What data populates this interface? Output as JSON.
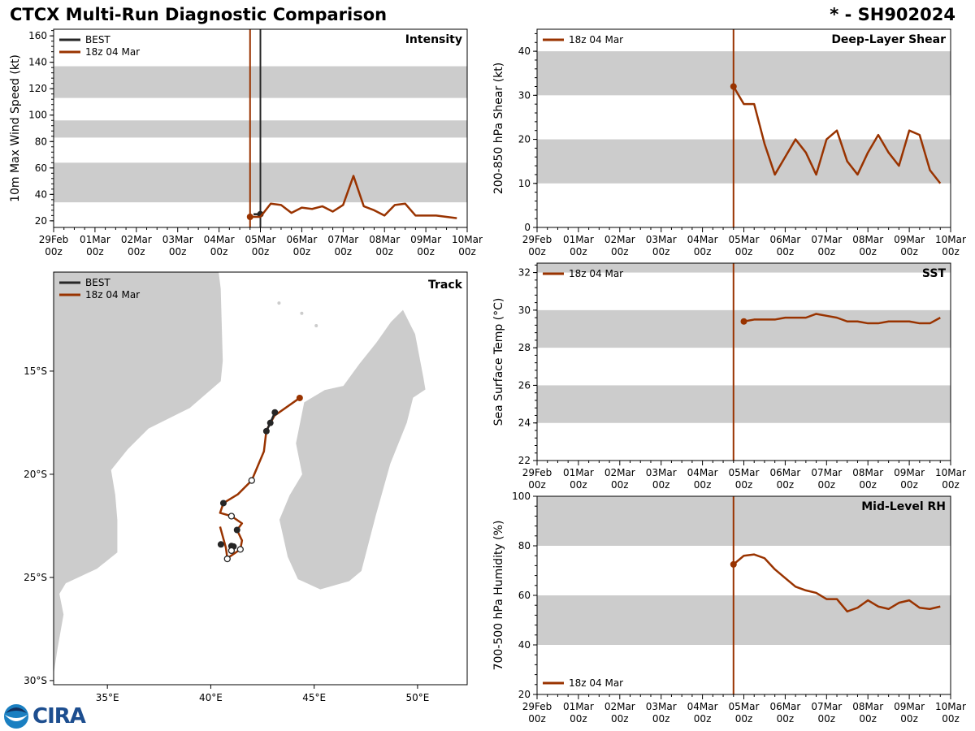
{
  "header": {
    "title": "CTCX Multi-Run Diagnostic Comparison",
    "storm": "* - SH902024"
  },
  "logo": {
    "noaa": "NOAA",
    "cira": "CIRA"
  },
  "colors": {
    "forecast": "#993300",
    "best": "#262626",
    "band": "#cccccc"
  },
  "time_axis": {
    "range": [
      "2024-02-29T00",
      "2024-03-10T00"
    ],
    "tick_labels": [
      [
        "29Feb",
        "00z"
      ],
      [
        "01Mar",
        "00z"
      ],
      [
        "02Mar",
        "00z"
      ],
      [
        "03Mar",
        "00z"
      ],
      [
        "04Mar",
        "00z"
      ],
      [
        "05Mar",
        "00z"
      ],
      [
        "06Mar",
        "00z"
      ],
      [
        "07Mar",
        "00z"
      ],
      [
        "08Mar",
        "00z"
      ],
      [
        "09Mar",
        "00z"
      ],
      [
        "10Mar",
        "00z"
      ]
    ]
  },
  "chart_data": [
    {
      "id": "intensity",
      "type": "line",
      "title": "Intensity",
      "ylabel": "10m Max Wind Speed (kt)",
      "ylim": [
        15,
        165
      ],
      "yticks": [
        20,
        40,
        60,
        80,
        100,
        120,
        140,
        160
      ],
      "bands": [
        [
          34,
          64
        ],
        [
          83,
          96
        ],
        [
          113,
          137
        ]
      ],
      "legend": {
        "position": "top-left",
        "entries": [
          "BEST",
          "18z 04 Mar"
        ]
      },
      "vlines": [
        {
          "t": "2024-03-04T18",
          "series": "18z 04 Mar"
        },
        {
          "t": "2024-03-05T00",
          "series": "BEST"
        }
      ],
      "series": [
        {
          "name": "BEST",
          "points": [
            [
              "2024-03-04T20",
              25
            ],
            [
              "2024-03-05T00",
              25
            ]
          ]
        },
        {
          "name": "18z 04 Mar",
          "points": [
            [
              "2024-03-04T18",
              23
            ],
            [
              "2024-03-05T00",
              23
            ],
            [
              "2024-03-05T06",
              33
            ],
            [
              "2024-03-05T12",
              32
            ],
            [
              "2024-03-05T18",
              26
            ],
            [
              "2024-03-06T00",
              30
            ],
            [
              "2024-03-06T06",
              29
            ],
            [
              "2024-03-06T12",
              31
            ],
            [
              "2024-03-06T18",
              27
            ],
            [
              "2024-03-07T00",
              32
            ],
            [
              "2024-03-07T06",
              54
            ],
            [
              "2024-03-07T12",
              31
            ],
            [
              "2024-03-07T18",
              28
            ],
            [
              "2024-03-08T00",
              24
            ],
            [
              "2024-03-08T06",
              32
            ],
            [
              "2024-03-08T12",
              33
            ],
            [
              "2024-03-08T18",
              24
            ],
            [
              "2024-03-09T00",
              24
            ],
            [
              "2024-03-09T06",
              24
            ],
            [
              "2024-03-09T12",
              23
            ],
            [
              "2024-03-09T18",
              22
            ]
          ]
        }
      ]
    },
    {
      "id": "shear",
      "type": "line",
      "title": "Deep-Layer Shear",
      "ylabel": "200-850 hPa Shear (kt)",
      "ylim": [
        0,
        45
      ],
      "yticks": [
        0,
        10,
        20,
        30,
        40
      ],
      "bands": [
        [
          10,
          20
        ],
        [
          30,
          40
        ]
      ],
      "legend": {
        "position": "top-left",
        "entries": [
          "18z 04 Mar"
        ]
      },
      "vlines": [
        {
          "t": "2024-03-04T18",
          "series": "18z 04 Mar"
        }
      ],
      "series": [
        {
          "name": "18z 04 Mar",
          "points": [
            [
              "2024-03-04T18",
              32
            ],
            [
              "2024-03-05T00",
              28
            ],
            [
              "2024-03-05T06",
              28
            ],
            [
              "2024-03-05T12",
              19
            ],
            [
              "2024-03-05T18",
              12
            ],
            [
              "2024-03-06T00",
              16
            ],
            [
              "2024-03-06T06",
              20
            ],
            [
              "2024-03-06T12",
              17
            ],
            [
              "2024-03-06T18",
              12
            ],
            [
              "2024-03-07T00",
              20
            ],
            [
              "2024-03-07T06",
              22
            ],
            [
              "2024-03-07T12",
              15
            ],
            [
              "2024-03-07T18",
              12
            ],
            [
              "2024-03-08T00",
              17
            ],
            [
              "2024-03-08T06",
              21
            ],
            [
              "2024-03-08T12",
              17
            ],
            [
              "2024-03-08T18",
              14
            ],
            [
              "2024-03-09T00",
              22
            ],
            [
              "2024-03-09T06",
              21
            ],
            [
              "2024-03-09T12",
              13
            ],
            [
              "2024-03-09T18",
              10
            ]
          ]
        }
      ]
    },
    {
      "id": "sst",
      "type": "line",
      "title": "SST",
      "ylabel": "Sea Surface Temp (°C)",
      "ylim": [
        22,
        32.5
      ],
      "yticks": [
        22,
        24,
        26,
        28,
        30,
        32
      ],
      "bands": [
        [
          24,
          26
        ],
        [
          28,
          30
        ],
        [
          32,
          33
        ]
      ],
      "legend": {
        "position": "top-left",
        "entries": [
          "18z 04 Mar"
        ]
      },
      "vlines": [
        {
          "t": "2024-03-04T18",
          "series": "18z 04 Mar"
        }
      ],
      "series": [
        {
          "name": "18z 04 Mar",
          "points": [
            [
              "2024-03-05T00",
              29.4
            ],
            [
              "2024-03-05T06",
              29.5
            ],
            [
              "2024-03-05T12",
              29.5
            ],
            [
              "2024-03-05T18",
              29.5
            ],
            [
              "2024-03-06T00",
              29.6
            ],
            [
              "2024-03-06T06",
              29.6
            ],
            [
              "2024-03-06T12",
              29.6
            ],
            [
              "2024-03-06T18",
              29.8
            ],
            [
              "2024-03-07T00",
              29.7
            ],
            [
              "2024-03-07T06",
              29.6
            ],
            [
              "2024-03-07T12",
              29.4
            ],
            [
              "2024-03-07T18",
              29.4
            ],
            [
              "2024-03-08T00",
              29.3
            ],
            [
              "2024-03-08T06",
              29.3
            ],
            [
              "2024-03-08T12",
              29.4
            ],
            [
              "2024-03-08T18",
              29.4
            ],
            [
              "2024-03-09T00",
              29.4
            ],
            [
              "2024-03-09T06",
              29.3
            ],
            [
              "2024-03-09T12",
              29.3
            ],
            [
              "2024-03-09T18",
              29.6
            ]
          ]
        }
      ]
    },
    {
      "id": "rh",
      "type": "line",
      "title": "Mid-Level RH",
      "ylabel": "700-500 hPa Humidity (%)",
      "ylim": [
        20,
        100
      ],
      "yticks": [
        20,
        40,
        60,
        80,
        100
      ],
      "bands": [
        [
          40,
          60
        ],
        [
          80,
          100
        ]
      ],
      "legend": {
        "position": "bottom-left",
        "entries": [
          "18z 04 Mar"
        ]
      },
      "vlines": [
        {
          "t": "2024-03-04T18",
          "series": "18z 04 Mar"
        }
      ],
      "series": [
        {
          "name": "18z 04 Mar",
          "points": [
            [
              "2024-03-04T18",
              72.5
            ],
            [
              "2024-03-05T00",
              76
            ],
            [
              "2024-03-05T06",
              76.5
            ],
            [
              "2024-03-05T12",
              75
            ],
            [
              "2024-03-05T18",
              70.5
            ],
            [
              "2024-03-06T00",
              67
            ],
            [
              "2024-03-06T06",
              63.5
            ],
            [
              "2024-03-06T12",
              62
            ],
            [
              "2024-03-06T18",
              61
            ],
            [
              "2024-03-07T00",
              58.5
            ],
            [
              "2024-03-07T06",
              58.5
            ],
            [
              "2024-03-07T12",
              53.5
            ],
            [
              "2024-03-07T18",
              55
            ],
            [
              "2024-03-08T00",
              58
            ],
            [
              "2024-03-08T06",
              55.5
            ],
            [
              "2024-03-08T12",
              54.5
            ],
            [
              "2024-03-08T18",
              57
            ],
            [
              "2024-03-09T00",
              58
            ],
            [
              "2024-03-09T06",
              55
            ],
            [
              "2024-03-09T12",
              54.5
            ],
            [
              "2024-03-09T18",
              55.5
            ]
          ]
        }
      ]
    },
    {
      "id": "track",
      "type": "scatter",
      "title": "Track",
      "lon_range": [
        32.4,
        52.4
      ],
      "lat_range": [
        -30.2,
        -10.2
      ],
      "xticks": [
        {
          "v": 35,
          "label": "35°E"
        },
        {
          "v": 40,
          "label": "40°E"
        },
        {
          "v": 45,
          "label": "45°E"
        },
        {
          "v": 50,
          "label": "50°E"
        }
      ],
      "yticks": [
        {
          "v": -15,
          "label": "15°S"
        },
        {
          "v": -20,
          "label": "20°S"
        },
        {
          "v": -25,
          "label": "25°S"
        },
        {
          "v": -30,
          "label": "30°S"
        }
      ],
      "legend": {
        "position": "top-left",
        "entries": [
          "BEST",
          "18z 04 Mar"
        ]
      },
      "forecast_track": [
        [
          44.3,
          -16.3
        ],
        [
          43.08,
          -17.16
        ],
        [
          42.69,
          -17.87
        ],
        [
          42.57,
          -18.89
        ],
        [
          41.98,
          -20.3
        ],
        [
          41.31,
          -20.97
        ],
        [
          40.61,
          -21.4
        ],
        [
          40.45,
          -21.87
        ],
        [
          41.0,
          -22.03
        ],
        [
          41.51,
          -22.38
        ],
        [
          41.27,
          -22.7
        ],
        [
          41.51,
          -23.21
        ],
        [
          41.43,
          -23.64
        ],
        [
          40.8,
          -24.07
        ],
        [
          40.73,
          -23.56
        ],
        [
          40.45,
          -22.54
        ]
      ],
      "best_track": [
        [
          43.1,
          -17.0
        ],
        [
          42.88,
          -17.51
        ],
        [
          42.69,
          -17.91
        ]
      ],
      "best_points_filled": [
        [
          43.1,
          -17.0
        ],
        [
          42.88,
          -17.51
        ],
        [
          42.69,
          -17.91
        ],
        [
          40.61,
          -21.4
        ],
        [
          41.27,
          -22.7
        ],
        [
          40.49,
          -23.4
        ],
        [
          41.0,
          -23.48
        ],
        [
          41.1,
          -23.5
        ]
      ],
      "best_points_open": [
        [
          41.98,
          -20.3
        ],
        [
          41.0,
          -22.03
        ],
        [
          41.43,
          -23.64
        ],
        [
          41.0,
          -23.7
        ],
        [
          40.8,
          -24.1
        ]
      ]
    }
  ]
}
